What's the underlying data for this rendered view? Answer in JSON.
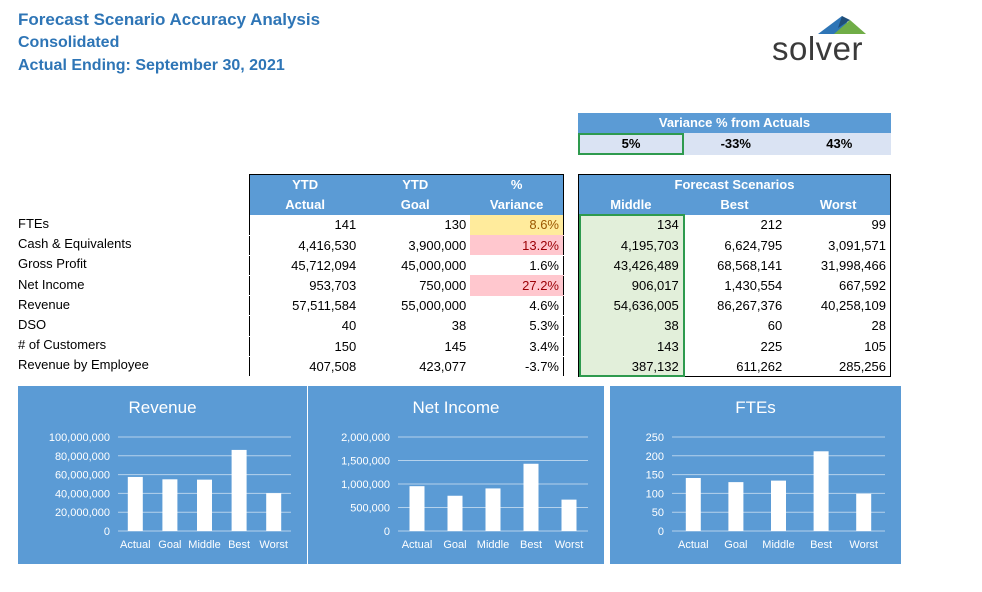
{
  "header": {
    "title": "Forecast Scenario Accuracy Analysis",
    "subtitle": "Consolidated",
    "actual_ending": "Actual Ending: September 30, 2021"
  },
  "logo": {
    "text": "solver",
    "icon": "solver-triangle-logo"
  },
  "variance_box": {
    "title": "Variance % from Actuals",
    "values": [
      "5%",
      "-33%",
      "43%"
    ]
  },
  "left_table": {
    "headers_top": [
      "YTD",
      "YTD",
      "%"
    ],
    "headers_bottom": [
      "Actual",
      "Goal",
      "Variance"
    ],
    "rows": [
      [
        "141",
        "130",
        "8.6%"
      ],
      [
        "4,416,530",
        "3,900,000",
        "13.2%"
      ],
      [
        "45,712,094",
        "45,000,000",
        "1.6%"
      ],
      [
        "953,703",
        "750,000",
        "27.2%"
      ],
      [
        "57,511,584",
        "55,000,000",
        "4.6%"
      ],
      [
        "40",
        "38",
        "5.3%"
      ],
      [
        "150",
        "145",
        "3.4%"
      ],
      [
        "407,508",
        "423,077",
        "-3.7%"
      ]
    ]
  },
  "row_labels": [
    "FTEs",
    "Cash & Equivalents",
    "Gross Profit",
    "Net Income",
    "Revenue",
    "DSO",
    "# of Customers",
    "Revenue by Employee"
  ],
  "right_table": {
    "title": "Forecast Scenarios",
    "headers": [
      "Middle",
      "Best",
      "Worst"
    ],
    "rows": [
      [
        "134",
        "212",
        "99"
      ],
      [
        "4,195,703",
        "6,624,795",
        "3,091,571"
      ],
      [
        "43,426,489",
        "68,568,141",
        "31,998,466"
      ],
      [
        "906,017",
        "1,430,554",
        "667,592"
      ],
      [
        "54,636,005",
        "86,267,376",
        "40,258,109"
      ],
      [
        "38",
        "60",
        "28"
      ],
      [
        "143",
        "225",
        "105"
      ],
      [
        "387,132",
        "611,262",
        "285,256"
      ]
    ]
  },
  "colors": {
    "header_blue": "#5b9bd5",
    "title_blue": "#2e75b6",
    "highlight_yellow": "#ffeb9c",
    "highlight_pink": "#ffc7ce",
    "selection_green": "#2e9a4e"
  },
  "chart_data": [
    {
      "type": "bar",
      "title": "Revenue",
      "categories": [
        "Actual",
        "Goal",
        "Middle",
        "Best",
        "Worst"
      ],
      "values": [
        57511584,
        55000000,
        54636005,
        86267376,
        40258109
      ],
      "ylim": [
        0,
        100000000
      ],
      "yticks": [
        "100,000,000",
        "80,000,000",
        "60,000,000",
        "40,000,000",
        "20,000,000",
        "0"
      ],
      "grid": true
    },
    {
      "type": "bar",
      "title": "Net Income",
      "categories": [
        "Actual",
        "Goal",
        "Middle",
        "Best",
        "Worst"
      ],
      "values": [
        953703,
        750000,
        906017,
        1430554,
        667592
      ],
      "ylim": [
        0,
        2000000
      ],
      "yticks": [
        "2,000,000",
        "1,500,000",
        "1,000,000",
        "500,000",
        "0"
      ],
      "grid": true
    },
    {
      "type": "bar",
      "title": "FTEs",
      "categories": [
        "Actual",
        "Goal",
        "Middle",
        "Best",
        "Worst"
      ],
      "values": [
        141,
        130,
        134,
        212,
        99
      ],
      "ylim": [
        0,
        250
      ],
      "yticks": [
        "250",
        "200",
        "150",
        "100",
        "50",
        "0"
      ],
      "grid": true
    }
  ]
}
